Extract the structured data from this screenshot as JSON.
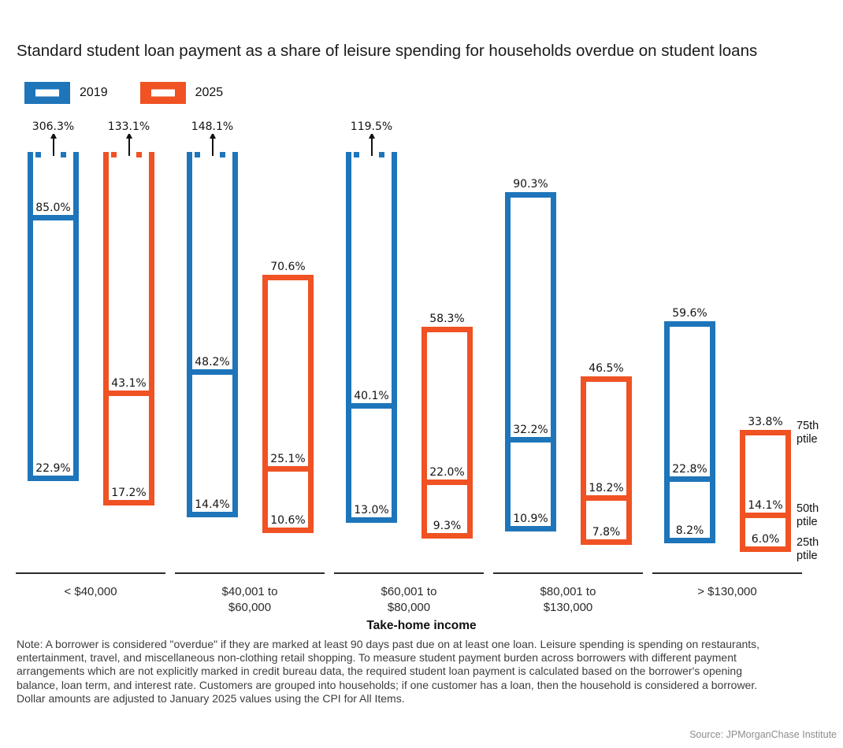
{
  "title": "Standard student loan payment as a share of leisure spending for households overdue on student loans",
  "legend": {
    "items": [
      {
        "label": "2019",
        "color": "#1E75BA"
      },
      {
        "label": "2025",
        "color": "#F05223"
      }
    ]
  },
  "chart_data": {
    "type": "bar",
    "subtype": "percentile-range-boxes",
    "unit": "percent of leisure spending",
    "title": "Standard student loan payment as a share of leisure spending for households overdue on student loans",
    "xlabel": "Take-home income",
    "ylim": [
      0,
      100
    ],
    "truncation_note": "bars exceeding 100% are drawn truncated with a dotted top and an up arrow; the 75th-percentile value is printed above the arrow",
    "grid": false,
    "legend_position": "top-left",
    "categories": [
      "< $40,000",
      "$40,001 to\n$60,000",
      "$60,001 to\n$80,000",
      "$80,001 to\n$130,000",
      "> $130,000"
    ],
    "percentile_labels": [
      "75th ptile",
      "50th ptile",
      "25th ptile"
    ],
    "series": [
      {
        "name": "2019",
        "color": "#1E75BA",
        "p75": [
          306.3,
          148.1,
          119.5,
          90.3,
          59.6
        ],
        "p50": [
          85.0,
          48.2,
          40.1,
          32.2,
          22.8
        ],
        "p25": [
          22.9,
          14.4,
          13.0,
          10.9,
          8.2
        ]
      },
      {
        "name": "2025",
        "color": "#F05223",
        "p75": [
          133.1,
          70.6,
          58.3,
          46.5,
          33.8
        ],
        "p50": [
          43.1,
          25.1,
          22.0,
          18.2,
          14.1
        ],
        "p25": [
          17.2,
          10.6,
          9.3,
          7.8,
          6.0
        ]
      }
    ]
  },
  "note": {
    "lines": [
      "Note: A borrower is considered \"overdue\" if they are marked at least 90 days past due on at least one loan. Leisure spending is spending on restaurants,",
      "entertainment, travel, and miscellaneous non-clothing retail shopping. To measure student payment burden across borrowers with different payment",
      "arrangements which are not explicitly marked in credit bureau data, the required student loan payment is calculated based on the borrower's opening",
      "balance, loan term, and interest rate. Customers are grouped into households; if one customer has a loan, then the household is considered a borrower.",
      "Dollar amounts are adjusted to January 2025 values using the CPI for All Items."
    ]
  },
  "source": "Source: JPMorganChase Institute"
}
